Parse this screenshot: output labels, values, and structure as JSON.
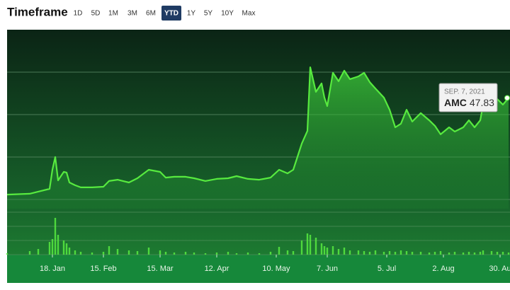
{
  "header": {
    "title": "Timeframe",
    "timeframes": [
      "1D",
      "5D",
      "1M",
      "3M",
      "6M",
      "YTD",
      "1Y",
      "5Y",
      "10Y",
      "Max"
    ],
    "active": 5
  },
  "chart_data": {
    "type": "line",
    "x": [
      0,
      8,
      11,
      15,
      16,
      17,
      18,
      20,
      21,
      22,
      24,
      26,
      30,
      34,
      36,
      39,
      43,
      46,
      50,
      54,
      56,
      59,
      63,
      66,
      70,
      74,
      78,
      81,
      85,
      89,
      93,
      96,
      99,
      101,
      104,
      106,
      107,
      109,
      111,
      112,
      113,
      115,
      117,
      119,
      121,
      124,
      126,
      128,
      130,
      133,
      135,
      137,
      139,
      141,
      143,
      146,
      149,
      151,
      153,
      156,
      158,
      161,
      163,
      165,
      167,
      168,
      171,
      173,
      175,
      177
    ],
    "series": [
      {
        "name": "AMC",
        "color": "#57ea3f",
        "values": [
          2.3,
          2.7,
          3.7,
          5,
          14,
          20,
          9,
          13,
          12.7,
          8,
          6.7,
          5.7,
          5.7,
          6,
          8.7,
          9.3,
          8,
          10,
          14,
          13,
          10.3,
          10.7,
          10.7,
          10,
          8.7,
          9.7,
          10,
          11,
          9.7,
          9.3,
          10.3,
          14,
          12.3,
          14,
          26.3,
          32.3,
          62.3,
          50.7,
          54.7,
          48,
          44,
          59.7,
          55.7,
          60.7,
          56.7,
          58,
          59.7,
          55.3,
          52.3,
          48,
          42.3,
          34,
          35.7,
          42.3,
          36.7,
          40.7,
          37.3,
          34.7,
          30.7,
          34,
          32,
          34,
          37.3,
          34,
          37.3,
          44.7,
          44,
          47.3,
          44.7,
          47.83
        ]
      }
    ],
    "volume": {
      "color": "#57ea3f",
      "values": [
        0.1,
        0.25,
        0.4,
        0.9,
        1.1,
        2.6,
        1.4,
        1.0,
        0.8,
        0.5,
        0.3,
        0.2,
        0.15,
        0.2,
        0.6,
        0.4,
        0.3,
        0.25,
        0.5,
        0.3,
        0.2,
        0.15,
        0.2,
        0.15,
        0.1,
        0.15,
        0.2,
        0.1,
        0.15,
        0.1,
        0.2,
        0.55,
        0.3,
        0.25,
        1.0,
        1.5,
        1.4,
        1.2,
        0.8,
        0.6,
        0.5,
        0.6,
        0.4,
        0.5,
        0.3,
        0.3,
        0.25,
        0.2,
        0.3,
        0.2,
        0.25,
        0.2,
        0.3,
        0.25,
        0.2,
        0.2,
        0.15,
        0.2,
        0.25,
        0.15,
        0.2,
        0.15,
        0.2,
        0.15,
        0.2,
        0.3,
        0.25,
        0.2,
        0.2,
        0.15
      ]
    },
    "xlim": [
      0,
      177.5
    ],
    "xticks": [
      {
        "value": 16,
        "label": "18. Jan"
      },
      {
        "value": 34,
        "label": "15. Feb"
      },
      {
        "value": 54,
        "label": "15. Mar"
      },
      {
        "value": 74,
        "label": "12. Apr"
      },
      {
        "value": 95,
        "label": "10. May"
      },
      {
        "value": 113,
        "label": "7. Jun"
      },
      {
        "value": 134,
        "label": "5. Jul"
      },
      {
        "value": 154,
        "label": "2. Aug"
      },
      {
        "value": 174,
        "label": "30. Au"
      }
    ],
    "ylim": [
      0,
      80
    ],
    "yticks": [
      0,
      20,
      40,
      60
    ],
    "volume_lim": [
      0,
      3
    ],
    "volume_ticks": [
      0,
      1,
      2,
      3
    ],
    "grid": true,
    "tooltip_date": "SEP. 7, 2021"
  }
}
